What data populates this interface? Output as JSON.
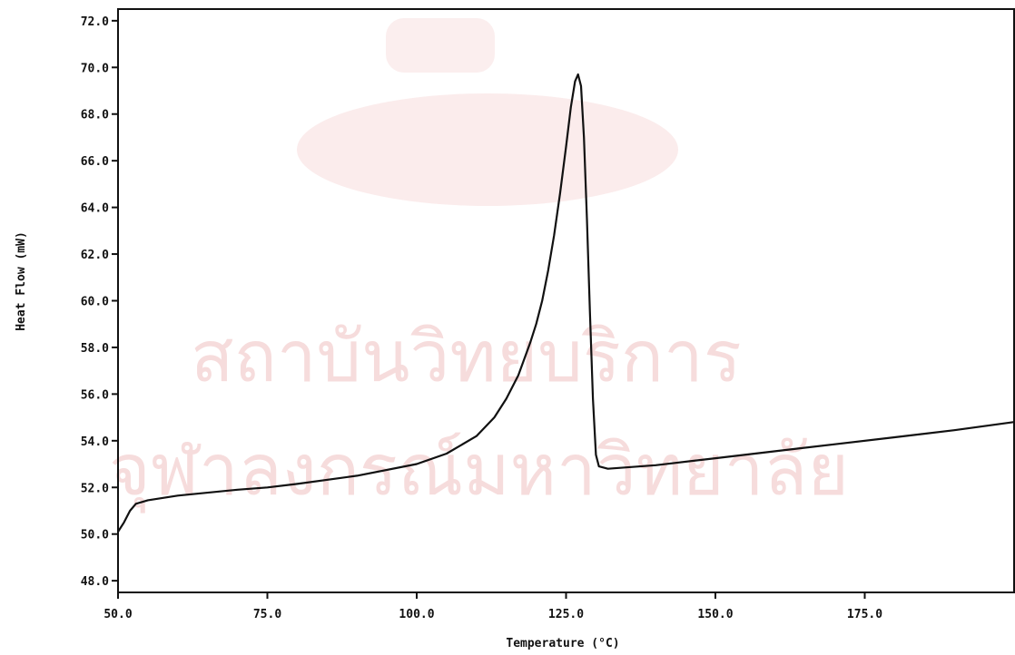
{
  "chart_data": {
    "type": "line",
    "title": "",
    "xlabel": "Temperature (°C)",
    "ylabel": "Heat Flow (mW)",
    "xlim": [
      50.0,
      200.0
    ],
    "ylim": [
      47.5,
      72.5
    ],
    "x_ticks": [
      "50.0",
      "75.0",
      "100.0",
      "125.0",
      "150.0",
      "175.0"
    ],
    "x_tick_values": [
      50,
      75,
      100,
      125,
      150,
      175
    ],
    "y_ticks": [
      "48.0",
      "50.0",
      "52.0",
      "54.0",
      "56.0",
      "58.0",
      "60.0",
      "62.0",
      "64.0",
      "66.0",
      "68.0",
      "70.0",
      "72.0"
    ],
    "y_tick_values": [
      48,
      50,
      52,
      54,
      56,
      58,
      60,
      62,
      64,
      66,
      68,
      70,
      72
    ],
    "grid": false,
    "color": "#111111",
    "series": [
      {
        "points": [
          [
            50.0,
            50.1
          ],
          [
            51.0,
            50.5
          ],
          [
            52.0,
            51.0
          ],
          [
            53.0,
            51.3
          ],
          [
            55.0,
            51.45
          ],
          [
            60.0,
            51.65
          ],
          [
            70.0,
            51.9
          ],
          [
            75.0,
            52.0
          ],
          [
            80.0,
            52.15
          ],
          [
            90.0,
            52.5
          ],
          [
            100.0,
            53.0
          ],
          [
            105.0,
            53.45
          ],
          [
            110.0,
            54.2
          ],
          [
            113.0,
            55.0
          ],
          [
            115.0,
            55.8
          ],
          [
            117.0,
            56.8
          ],
          [
            119.0,
            58.2
          ],
          [
            120.0,
            59.0
          ],
          [
            121.0,
            60.0
          ],
          [
            122.0,
            61.3
          ],
          [
            123.0,
            62.8
          ],
          [
            124.0,
            64.6
          ],
          [
            125.0,
            66.6
          ],
          [
            125.8,
            68.3
          ],
          [
            126.5,
            69.4
          ],
          [
            127.0,
            69.7
          ],
          [
            127.5,
            69.2
          ],
          [
            128.0,
            67.0
          ],
          [
            128.5,
            63.5
          ],
          [
            129.0,
            59.5
          ],
          [
            129.5,
            55.8
          ],
          [
            130.0,
            53.4
          ],
          [
            130.5,
            52.9
          ],
          [
            132.0,
            52.8
          ],
          [
            140.0,
            52.95
          ],
          [
            150.0,
            53.25
          ],
          [
            160.0,
            53.55
          ],
          [
            170.0,
            53.85
          ],
          [
            180.0,
            54.15
          ],
          [
            190.0,
            54.45
          ],
          [
            200.0,
            54.8
          ]
        ]
      }
    ]
  },
  "watermark": {
    "line1": "สถาบันวิทยบริการ",
    "line2": "จุฬาลงกรณ์มหาวิทยาลัย"
  }
}
